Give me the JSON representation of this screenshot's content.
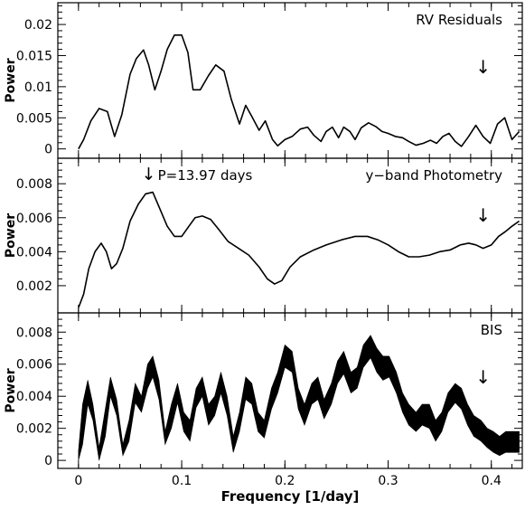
{
  "chart_data": [
    {
      "type": "line",
      "panel": "top",
      "annotation_text": "RV Residuals",
      "ylabel": "Power",
      "xlim": [
        -0.02,
        0.43
      ],
      "ylim": [
        -0.0015,
        0.0235
      ],
      "yticks": [
        0,
        0.005,
        0.01,
        0.015,
        0.02
      ],
      "ytick_labels": [
        "0",
        "0.005",
        "0.01",
        "0.015",
        "0.02"
      ],
      "marker_arrow": {
        "x": 0.392,
        "glyph": "↓"
      },
      "x": [
        0.0,
        0.005,
        0.012,
        0.02,
        0.028,
        0.035,
        0.042,
        0.05,
        0.056,
        0.063,
        0.068,
        0.074,
        0.08,
        0.086,
        0.093,
        0.1,
        0.106,
        0.111,
        0.118,
        0.126,
        0.133,
        0.141,
        0.148,
        0.156,
        0.162,
        0.168,
        0.175,
        0.181,
        0.188,
        0.193,
        0.2,
        0.207,
        0.215,
        0.222,
        0.228,
        0.235,
        0.24,
        0.246,
        0.252,
        0.257,
        0.263,
        0.268,
        0.274,
        0.281,
        0.288,
        0.294,
        0.3,
        0.307,
        0.314,
        0.32,
        0.327,
        0.334,
        0.341,
        0.347,
        0.353,
        0.359,
        0.365,
        0.371,
        0.378,
        0.385,
        0.392,
        0.399,
        0.406,
        0.413,
        0.42,
        0.427
      ],
      "values": [
        0.0,
        0.0015,
        0.0045,
        0.0065,
        0.006,
        0.002,
        0.0055,
        0.012,
        0.0145,
        0.0159,
        0.0135,
        0.0095,
        0.0125,
        0.016,
        0.0183,
        0.0183,
        0.0155,
        0.0095,
        0.0095,
        0.0118,
        0.0135,
        0.0125,
        0.008,
        0.004,
        0.007,
        0.0052,
        0.003,
        0.0045,
        0.0015,
        0.0005,
        0.0015,
        0.002,
        0.0032,
        0.0035,
        0.0022,
        0.0012,
        0.0028,
        0.0035,
        0.0018,
        0.0035,
        0.0028,
        0.0015,
        0.0034,
        0.0042,
        0.0036,
        0.0028,
        0.0025,
        0.002,
        0.0018,
        0.0012,
        0.0006,
        0.0009,
        0.0014,
        0.0009,
        0.002,
        0.0025,
        0.0012,
        0.0004,
        0.002,
        0.0038,
        0.002,
        0.0009,
        0.004,
        0.005,
        0.0015,
        0.0028
      ]
    },
    {
      "type": "line",
      "panel": "middle",
      "annotation_text": "y−band Photometry",
      "period_label": "P=13.97 days",
      "ylabel": "Power",
      "xlim": [
        -0.02,
        0.43
      ],
      "ylim": [
        0.0004,
        0.0095
      ],
      "yticks": [
        0.002,
        0.004,
        0.006,
        0.008
      ],
      "ytick_labels": [
        "0.002",
        "0.004",
        "0.006",
        "0.008"
      ],
      "marker_arrow": {
        "x": 0.392,
        "glyph": "↓"
      },
      "period_arrow": {
        "x": 0.0716,
        "glyph": "↓"
      },
      "x": [
        0.0,
        0.005,
        0.01,
        0.016,
        0.022,
        0.027,
        0.032,
        0.037,
        0.043,
        0.05,
        0.058,
        0.065,
        0.072,
        0.079,
        0.086,
        0.093,
        0.1,
        0.107,
        0.113,
        0.12,
        0.128,
        0.136,
        0.145,
        0.155,
        0.165,
        0.175,
        0.183,
        0.19,
        0.197,
        0.205,
        0.215,
        0.228,
        0.24,
        0.255,
        0.268,
        0.28,
        0.29,
        0.3,
        0.31,
        0.32,
        0.33,
        0.34,
        0.35,
        0.36,
        0.37,
        0.378,
        0.385,
        0.392,
        0.4,
        0.407,
        0.414,
        0.42,
        0.427
      ],
      "values": [
        0.0007,
        0.0015,
        0.003,
        0.004,
        0.0045,
        0.004,
        0.003,
        0.0033,
        0.0042,
        0.0058,
        0.0068,
        0.0074,
        0.0075,
        0.0065,
        0.0055,
        0.0049,
        0.0049,
        0.0055,
        0.006,
        0.0061,
        0.0059,
        0.0053,
        0.0046,
        0.0042,
        0.0038,
        0.0031,
        0.0024,
        0.0021,
        0.0023,
        0.0031,
        0.0037,
        0.0041,
        0.0044,
        0.0047,
        0.0049,
        0.0049,
        0.0047,
        0.0044,
        0.004,
        0.0037,
        0.0037,
        0.0038,
        0.004,
        0.0041,
        0.0044,
        0.0045,
        0.0044,
        0.0042,
        0.0044,
        0.0049,
        0.0052,
        0.0055,
        0.0058
      ]
    },
    {
      "type": "area",
      "panel": "bottom",
      "annotation_text": "BIS",
      "ylabel": "Power",
      "xlabel": "Frequency [1/day]",
      "xlim": [
        -0.02,
        0.43
      ],
      "ylim": [
        -0.0005,
        0.0092
      ],
      "yticks": [
        0,
        0.002,
        0.004,
        0.006,
        0.008
      ],
      "ytick_labels": [
        "0",
        "0.002",
        "0.004",
        "0.006",
        "0.008"
      ],
      "xticks": [
        0,
        0.1,
        0.2,
        0.3,
        0.4
      ],
      "xtick_labels": [
        "0",
        "0.1",
        "0.2",
        "0.3",
        "0.4"
      ],
      "marker_arrow": {
        "x": 0.392,
        "glyph": "↓"
      },
      "x": [
        0.0,
        0.004,
        0.009,
        0.014,
        0.02,
        0.026,
        0.031,
        0.037,
        0.043,
        0.049,
        0.055,
        0.061,
        0.067,
        0.072,
        0.078,
        0.084,
        0.09,
        0.096,
        0.102,
        0.108,
        0.114,
        0.12,
        0.126,
        0.132,
        0.138,
        0.144,
        0.15,
        0.156,
        0.162,
        0.168,
        0.174,
        0.18,
        0.187,
        0.193,
        0.2,
        0.207,
        0.213,
        0.219,
        0.226,
        0.232,
        0.238,
        0.245,
        0.251,
        0.257,
        0.264,
        0.27,
        0.276,
        0.283,
        0.289,
        0.295,
        0.301,
        0.308,
        0.314,
        0.32,
        0.327,
        0.333,
        0.34,
        0.346,
        0.352,
        0.358,
        0.365,
        0.371,
        0.377,
        0.383,
        0.39,
        0.396,
        0.402,
        0.408,
        0.414,
        0.42,
        0.427
      ],
      "upper": [
        0.0006,
        0.0035,
        0.005,
        0.0035,
        0.0008,
        0.0032,
        0.0052,
        0.0038,
        0.001,
        0.0025,
        0.0048,
        0.004,
        0.006,
        0.0065,
        0.005,
        0.0018,
        0.0035,
        0.0048,
        0.003,
        0.0025,
        0.0045,
        0.0052,
        0.0035,
        0.004,
        0.0055,
        0.004,
        0.0015,
        0.003,
        0.0052,
        0.0048,
        0.003,
        0.0025,
        0.0045,
        0.0055,
        0.0072,
        0.0068,
        0.0045,
        0.0035,
        0.0048,
        0.0052,
        0.0038,
        0.0048,
        0.0062,
        0.0068,
        0.0055,
        0.0058,
        0.0072,
        0.0078,
        0.007,
        0.0065,
        0.0065,
        0.0055,
        0.0042,
        0.0035,
        0.003,
        0.0035,
        0.0035,
        0.0025,
        0.003,
        0.0042,
        0.0048,
        0.0045,
        0.0035,
        0.0028,
        0.0025,
        0.002,
        0.0018,
        0.0015,
        0.0018,
        0.0018,
        0.0018
      ],
      "lower": [
        0.0,
        0.001,
        0.0035,
        0.0025,
        0.0,
        0.0015,
        0.004,
        0.0028,
        0.0003,
        0.0012,
        0.0036,
        0.003,
        0.0045,
        0.0052,
        0.0038,
        0.001,
        0.002,
        0.0036,
        0.0018,
        0.0012,
        0.0033,
        0.004,
        0.0022,
        0.0028,
        0.0042,
        0.0028,
        0.0005,
        0.0018,
        0.0038,
        0.0035,
        0.0018,
        0.0014,
        0.0032,
        0.0042,
        0.0058,
        0.0055,
        0.0032,
        0.0022,
        0.0035,
        0.0038,
        0.0026,
        0.0035,
        0.0048,
        0.0054,
        0.0042,
        0.0045,
        0.0058,
        0.0064,
        0.0055,
        0.005,
        0.0052,
        0.0042,
        0.003,
        0.0022,
        0.0018,
        0.0022,
        0.002,
        0.0012,
        0.0018,
        0.003,
        0.0036,
        0.0032,
        0.0022,
        0.0015,
        0.0012,
        0.0008,
        0.0005,
        0.0003,
        0.0005,
        0.0005,
        0.0005
      ]
    }
  ]
}
